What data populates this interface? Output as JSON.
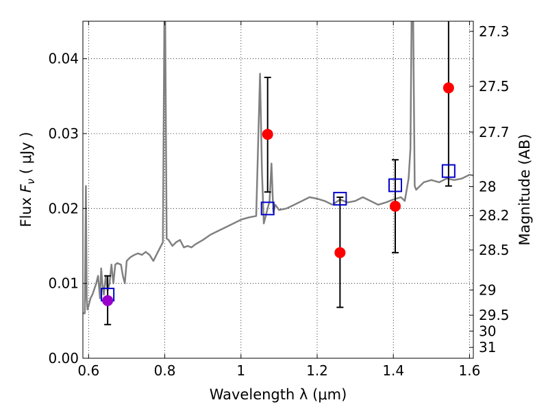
{
  "chart_data": {
    "type": "scatter",
    "xlabel": "Wavelength  λ (μm)",
    "ylabel": "Flux  Fν  ( μJy )",
    "y2label": "Magnitude (AB)",
    "xlim": [
      0.585,
      1.61
    ],
    "ylim": [
      0.0,
      0.045
    ],
    "x_ticks": [
      0.6,
      0.8,
      1.0,
      1.2,
      1.4,
      1.6
    ],
    "x_tick_labels": [
      "0.6",
      "0.8",
      "1",
      "1.2",
      "1.4",
      "1.6"
    ],
    "y_ticks": [
      0.0,
      0.01,
      0.02,
      0.03,
      0.04
    ],
    "y_tick_labels": [
      "0.00",
      "0.01",
      "0.02",
      "0.03",
      "0.04"
    ],
    "y2_ticks": [
      {
        "label": "27.3",
        "flux": 0.04365
      },
      {
        "label": "27.5",
        "flux": 0.03631
      },
      {
        "label": "27.7",
        "flux": 0.0302
      },
      {
        "label": "28",
        "flux": 0.02291
      },
      {
        "label": "28.2",
        "flux": 0.01905
      },
      {
        "label": "28.5",
        "flux": 0.01445
      },
      {
        "label": "29",
        "flux": 0.00912
      },
      {
        "label": "29.5",
        "flux": 0.00575
      },
      {
        "label": "30",
        "flux": 0.00363
      },
      {
        "label": "31",
        "flux": 0.00145
      }
    ],
    "grid": true,
    "colors": {
      "spectrum": "#808080",
      "observed": "#ff0000",
      "observed_first": "#9900cc",
      "model": "#0000cc",
      "errorbar": "#000000"
    },
    "series": [
      {
        "kind": "spectrum",
        "x": [
          0.585,
          0.59,
          0.593,
          0.595,
          0.597,
          0.6,
          0.605,
          0.61,
          0.62,
          0.625,
          0.63,
          0.633,
          0.636,
          0.64,
          0.645,
          0.65,
          0.655,
          0.66,
          0.665,
          0.67,
          0.675,
          0.68,
          0.685,
          0.69,
          0.695,
          0.7,
          0.71,
          0.72,
          0.73,
          0.74,
          0.75,
          0.76,
          0.77,
          0.78,
          0.79,
          0.795,
          0.799,
          0.801,
          0.805,
          0.81,
          0.82,
          0.83,
          0.84,
          0.85,
          0.86,
          0.87,
          0.88,
          0.9,
          0.92,
          0.94,
          0.96,
          0.98,
          1.0,
          1.02,
          1.04,
          1.05,
          1.055,
          1.06,
          1.065,
          1.07,
          1.075,
          1.08,
          1.085,
          1.09,
          1.1,
          1.12,
          1.14,
          1.16,
          1.18,
          1.2,
          1.22,
          1.24,
          1.26,
          1.28,
          1.3,
          1.32,
          1.34,
          1.36,
          1.38,
          1.4,
          1.42,
          1.43,
          1.44,
          1.445,
          1.448,
          1.452,
          1.456,
          1.46,
          1.47,
          1.48,
          1.5,
          1.52,
          1.54,
          1.56,
          1.58,
          1.6,
          1.61
        ],
        "y": [
          0.006,
          0.006,
          0.023,
          0.008,
          0.0065,
          0.007,
          0.008,
          0.0085,
          0.01,
          0.011,
          0.008,
          0.012,
          0.01,
          0.0085,
          0.011,
          0.009,
          0.01,
          0.0125,
          0.01,
          0.0125,
          0.0127,
          0.0126,
          0.0125,
          0.011,
          0.01,
          0.013,
          0.0135,
          0.0138,
          0.014,
          0.0138,
          0.0142,
          0.0138,
          0.013,
          0.014,
          0.015,
          0.0155,
          0.046,
          0.046,
          0.016,
          0.0158,
          0.015,
          0.0155,
          0.0158,
          0.0148,
          0.015,
          0.0148,
          0.0152,
          0.0158,
          0.0165,
          0.017,
          0.0175,
          0.018,
          0.0185,
          0.0188,
          0.019,
          0.038,
          0.025,
          0.018,
          0.019,
          0.02,
          0.021,
          0.026,
          0.0195,
          0.0205,
          0.0198,
          0.02,
          0.0205,
          0.021,
          0.0215,
          0.0213,
          0.021,
          0.0205,
          0.0212,
          0.0208,
          0.021,
          0.0215,
          0.021,
          0.0205,
          0.0208,
          0.0212,
          0.0215,
          0.021,
          0.024,
          0.028,
          0.046,
          0.046,
          0.023,
          0.0225,
          0.023,
          0.0235,
          0.0238,
          0.0235,
          0.024,
          0.0238,
          0.024,
          0.0245,
          0.0244
        ]
      },
      {
        "kind": "model",
        "x": [
          0.65,
          1.07,
          1.26,
          1.405,
          1.545
        ],
        "y": [
          0.0085,
          0.02,
          0.0213,
          0.0231,
          0.025
        ]
      },
      {
        "kind": "observed",
        "x": [
          0.65,
          1.07,
          1.26,
          1.405,
          1.545
        ],
        "y": [
          0.0077,
          0.0299,
          0.0141,
          0.0203,
          0.0361
        ],
        "yerr_low": [
          0.0045,
          0.0222,
          0.0068,
          0.0141,
          0.023
        ],
        "yerr_high": [
          0.011,
          0.0375,
          0.0215,
          0.0265,
          0.046
        ]
      }
    ]
  }
}
